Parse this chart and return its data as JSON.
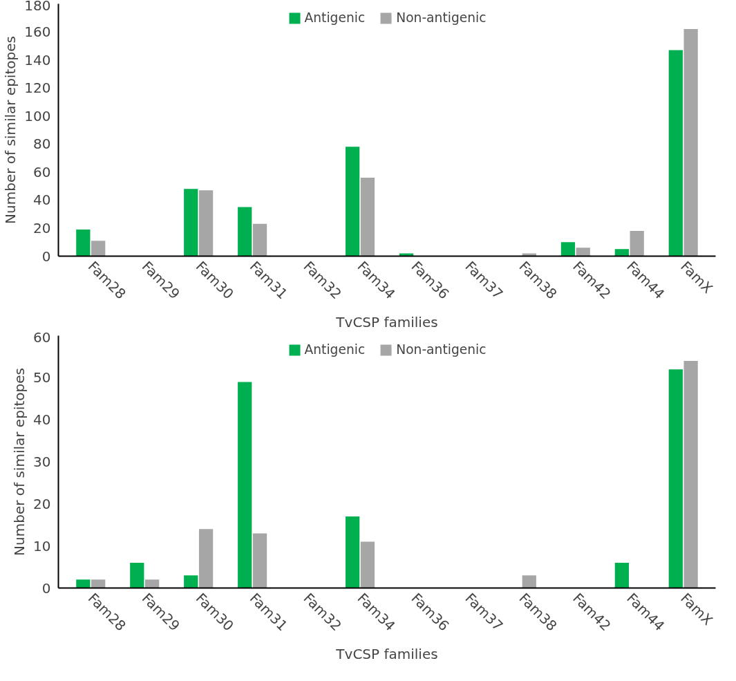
{
  "chart_data": [
    {
      "type": "bar",
      "xlabel": "TvCSP families",
      "ylabel": "Number of similar epitopes",
      "categories": [
        "Fam28",
        "Fam29",
        "Fam30",
        "Fam31",
        "Fam32",
        "Fam34",
        "Fam36",
        "Fam37",
        "Fam38",
        "Fam42",
        "Fam44",
        "FamX"
      ],
      "series": [
        {
          "name": "Antigenic",
          "color": "#00b050",
          "values": [
            19,
            0,
            48,
            35,
            0,
            78,
            2,
            0,
            0,
            10,
            5,
            147
          ]
        },
        {
          "name": "Non-antigenic",
          "color": "#a6a6a6",
          "values": [
            11,
            0,
            47,
            23,
            0,
            56,
            0,
            0,
            2,
            6,
            18,
            162
          ]
        }
      ],
      "ylim": [
        0,
        180
      ],
      "yticks": [
        0,
        20,
        40,
        60,
        80,
        100,
        120,
        140,
        160,
        180
      ],
      "grid": false,
      "legend": "top"
    },
    {
      "type": "bar",
      "xlabel": "TvCSP families",
      "ylabel": "Number of similar epitopes",
      "categories": [
        "Fam28",
        "Fam29",
        "Fam30",
        "Fam31",
        "Fam32",
        "Fam34",
        "Fam36",
        "Fam37",
        "Fam38",
        "Fam42",
        "Fam44",
        "FamX"
      ],
      "series": [
        {
          "name": "Antigenic",
          "color": "#00b050",
          "values": [
            2,
            6,
            3,
            49,
            0,
            17,
            0,
            0,
            0,
            0,
            6,
            52
          ]
        },
        {
          "name": "Non-antigenic",
          "color": "#a6a6a6",
          "values": [
            2,
            2,
            14,
            13,
            0,
            11,
            0,
            0,
            3,
            0,
            0,
            54
          ]
        }
      ],
      "ylim": [
        0,
        60
      ],
      "yticks": [
        0,
        10,
        20,
        30,
        40,
        50,
        60
      ],
      "grid": false,
      "legend": "top"
    }
  ]
}
